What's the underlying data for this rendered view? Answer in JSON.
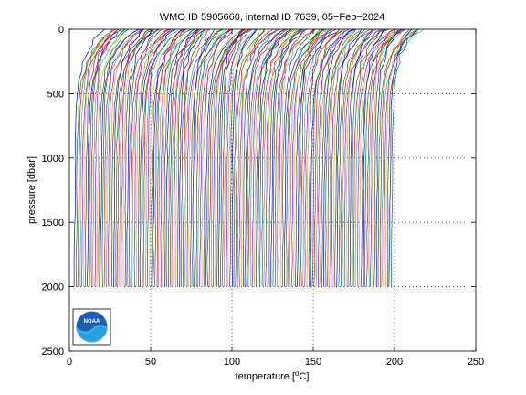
{
  "chart_data": {
    "type": "line",
    "title": "WMO ID 5905660, internal ID 7639, 05−Feb−2024",
    "xlabel_prefix": "temperature [",
    "xlabel_unit_sup": "o",
    "xlabel_suffix": "C]",
    "ylabel": "pressure [dbar]",
    "xlim": [
      0,
      250
    ],
    "ylim": [
      2500,
      0
    ],
    "y_reversed": true,
    "xticks": [
      0,
      50,
      100,
      150,
      200,
      250
    ],
    "yticks": [
      0,
      500,
      1000,
      1500,
      2000,
      2500
    ],
    "grid": "dotted",
    "profile_count": 170,
    "profile_start_temperature": 3,
    "profile_end_temperature": 198,
    "profile_pressure_range": [
      0,
      2000
    ],
    "profile_colors": [
      "#0000ff",
      "#008000",
      "#ff0000",
      "#00bfbf",
      "#bf00bf",
      "#bfbf00",
      "#404040"
    ],
    "logo": "noaa-logo"
  },
  "logo": {
    "text": "NOAA"
  }
}
